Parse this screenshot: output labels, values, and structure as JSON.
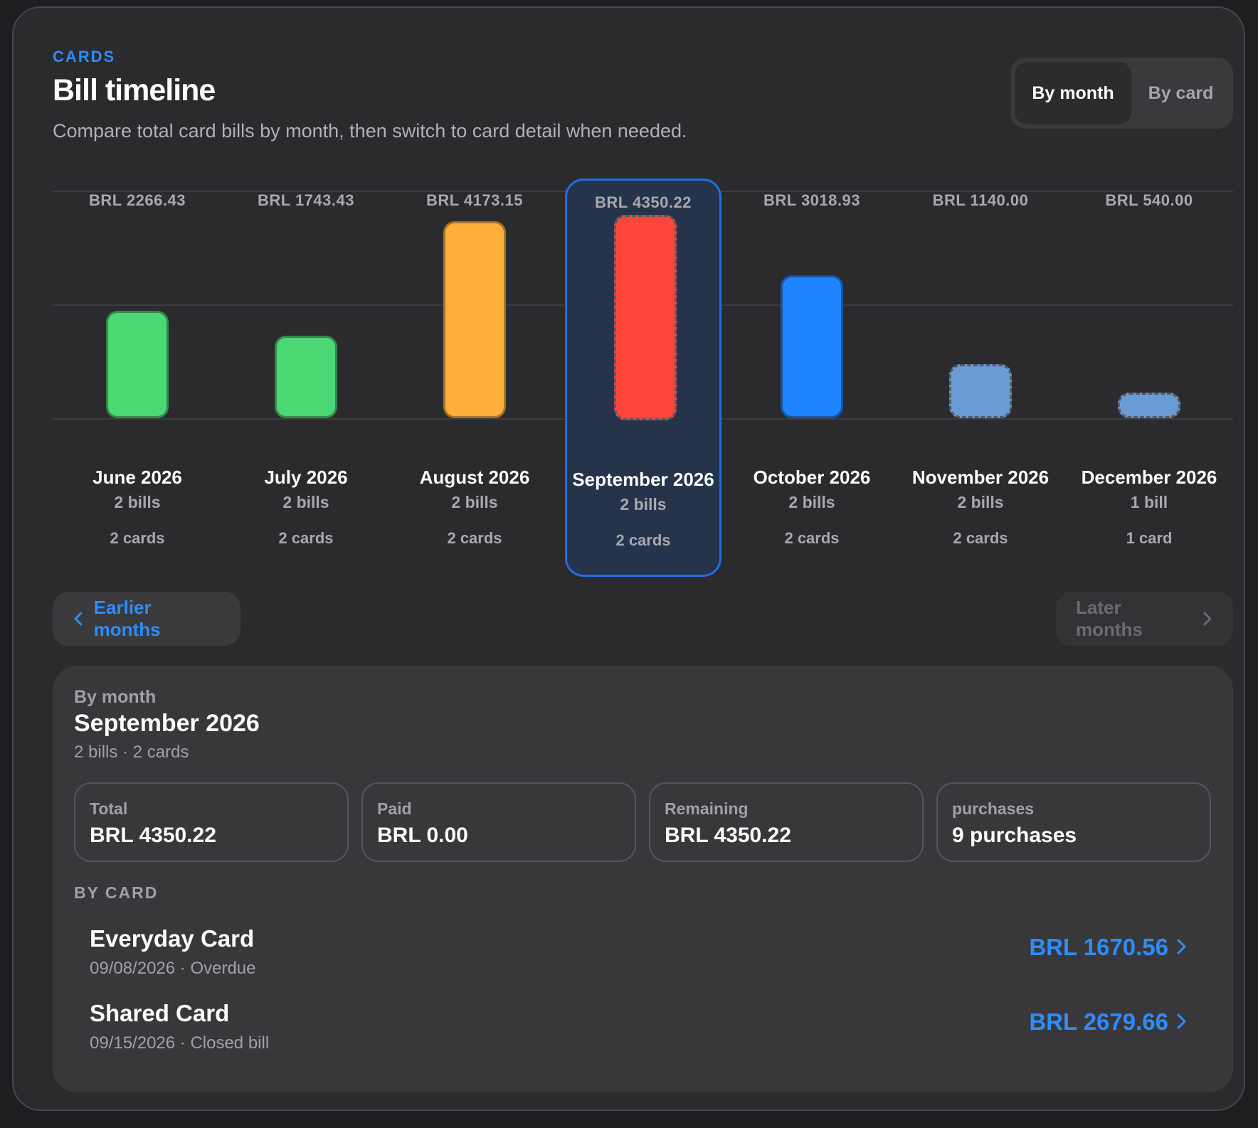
{
  "header": {
    "eyebrow": "CARDS",
    "title": "Bill timeline",
    "subtitle": "Compare total card bills by month, then switch to card detail when needed."
  },
  "view_toggle": {
    "options": [
      "By month",
      "By card"
    ],
    "selected": "By month"
  },
  "timeline": {
    "selected_index": 3,
    "months": [
      {
        "value_label": "BRL 2266.43",
        "month": "June 2026",
        "bills": "2 bills",
        "cards": "2 cards",
        "amount": 2266.43,
        "color": "#4cd874",
        "projected": false
      },
      {
        "value_label": "BRL 1743.43",
        "month": "July 2026",
        "bills": "2 bills",
        "cards": "2 cards",
        "amount": 1743.43,
        "color": "#4cd874",
        "projected": false
      },
      {
        "value_label": "BRL 4173.15",
        "month": "August 2026",
        "bills": "2 bills",
        "cards": "2 cards",
        "amount": 4173.15,
        "color": "#ffb03a",
        "projected": false
      },
      {
        "value_label": "BRL 4350.22",
        "month": "September 2026",
        "bills": "2 bills",
        "cards": "2 cards",
        "amount": 4350.22,
        "color": "#ff453a",
        "projected": true
      },
      {
        "value_label": "BRL 3018.93",
        "month": "October 2026",
        "bills": "2 bills",
        "cards": "2 cards",
        "amount": 3018.93,
        "color": "#1f84ff",
        "projected": false
      },
      {
        "value_label": "BRL 1140.00",
        "month": "November 2026",
        "bills": "2 bills",
        "cards": "2 cards",
        "amount": 1140.0,
        "color": "#6a9bd4",
        "projected": true
      },
      {
        "value_label": "BRL 540.00",
        "month": "December 2026",
        "bills": "1 bill",
        "cards": "1 card",
        "amount": 540.0,
        "color": "#6a9bd4",
        "projected": true
      }
    ]
  },
  "nav": {
    "earlier": "Earlier months",
    "later": "Later months"
  },
  "detail": {
    "label": "By month",
    "title": "September 2026",
    "subtitle": "2 bills · 2 cards",
    "stats": [
      {
        "label": "Total",
        "value": "BRL 4350.22"
      },
      {
        "label": "Paid",
        "value": "BRL 0.00"
      },
      {
        "label": "Remaining",
        "value": "BRL 4350.22"
      },
      {
        "label": "purchases",
        "value": "9 purchases"
      }
    ],
    "by_card_heading": "BY CARD",
    "cards": [
      {
        "name": "Everyday Card",
        "meta": "09/08/2026 · Overdue",
        "amount": "BRL 1670.56"
      },
      {
        "name": "Shared Card",
        "meta": "09/15/2026 · Closed bill",
        "amount": "BRL 2679.66"
      }
    ]
  },
  "colors": {
    "accent": "#2f8cff",
    "panel": "#2b2b2d",
    "detail_bg": "#38383b"
  }
}
